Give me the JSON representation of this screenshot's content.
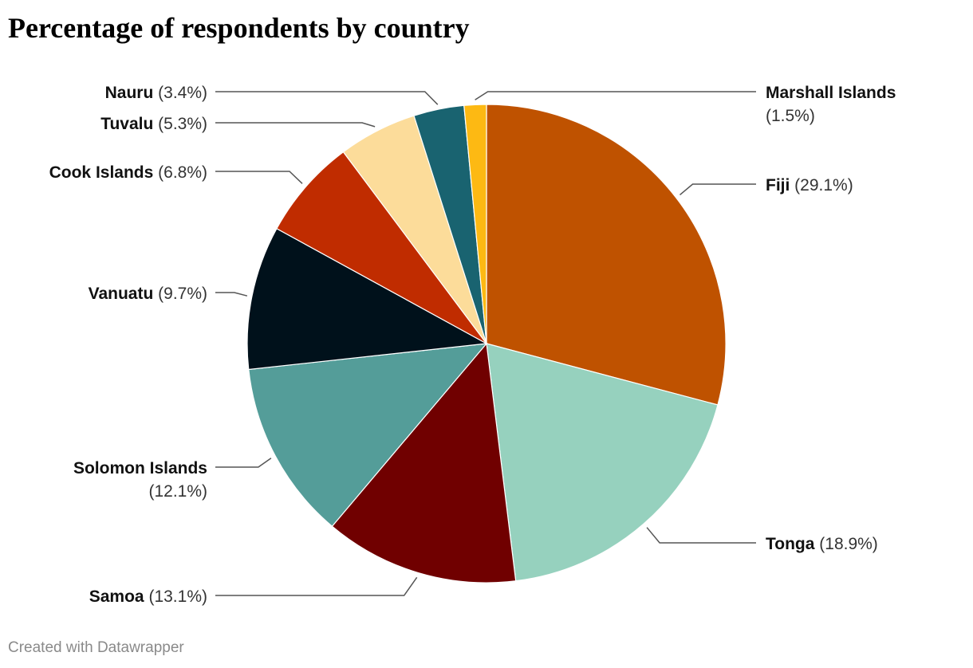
{
  "page": {
    "title": "Percentage of respondents by country",
    "credit": "Created with Datawrapper"
  },
  "chart_data": {
    "type": "pie",
    "title": "Percentage of respondents by country",
    "unit": "%",
    "slices": [
      {
        "label": "Fiji",
        "value": 29.1,
        "display": "(29.1%)",
        "color": "#bf5200"
      },
      {
        "label": "Tonga",
        "value": 18.9,
        "display": "(18.9%)",
        "color": "#96d1be"
      },
      {
        "label": "Samoa",
        "value": 13.1,
        "display": "(13.1%)",
        "color": "#700000"
      },
      {
        "label": "Solomon Islands",
        "value": 12.1,
        "display": "(12.1%)",
        "color": "#549d99"
      },
      {
        "label": "Vanuatu",
        "value": 9.7,
        "display": "(9.7%)",
        "color": "#00111b"
      },
      {
        "label": "Cook Islands",
        "value": 6.8,
        "display": "(6.8%)",
        "color": "#c02c00"
      },
      {
        "label": "Tuvalu",
        "value": 5.3,
        "display": "(5.3%)",
        "color": "#fcdc9a"
      },
      {
        "label": "Nauru",
        "value": 3.4,
        "display": "(3.4%)",
        "color": "#196370"
      },
      {
        "label": "Marshall Islands",
        "value": 1.5,
        "display": "(1.5%)",
        "color": "#fdb913"
      }
    ]
  }
}
